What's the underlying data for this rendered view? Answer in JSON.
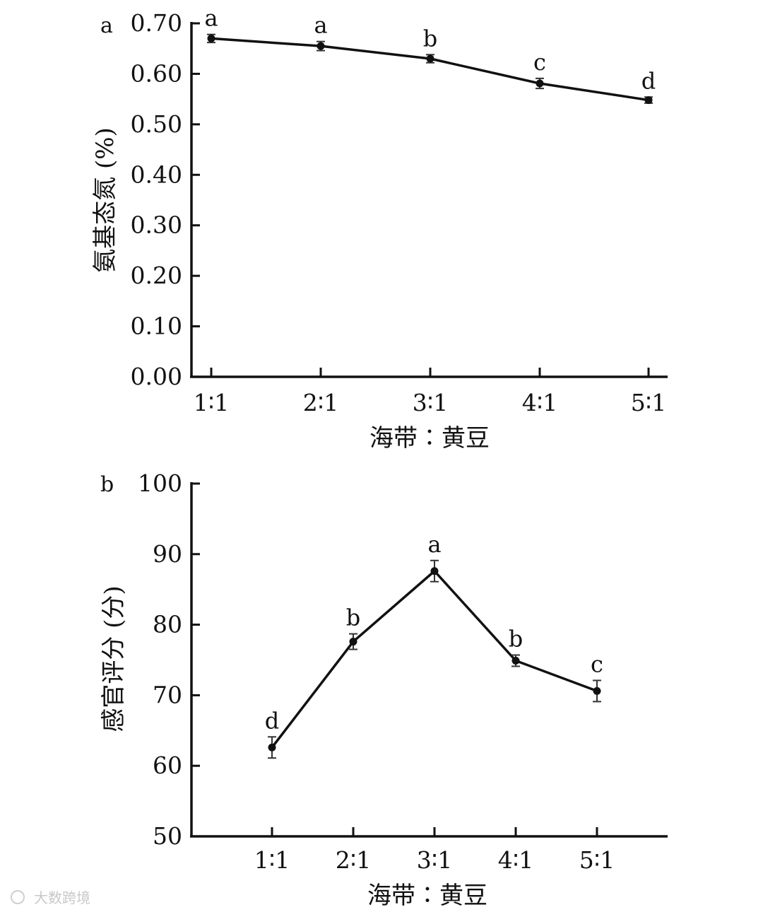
{
  "chart_data": [
    {
      "type": "line",
      "panel_label": "a",
      "categories": [
        "1∶1",
        "2∶1",
        "3∶1",
        "4∶1",
        "5∶1"
      ],
      "values": [
        0.67,
        0.655,
        0.63,
        0.581,
        0.548
      ],
      "errors": [
        0.008,
        0.009,
        0.008,
        0.01,
        0.006
      ],
      "significance_labels": [
        "a",
        "a",
        "b",
        "c",
        "d"
      ],
      "xlabel": "海带∶黄豆",
      "ylabel": "氨基态氮 (%)",
      "ylim": [
        0,
        0.7
      ],
      "yticks": [
        "0.00",
        "0.10",
        "0.20",
        "0.30",
        "0.40",
        "0.50",
        "0.60",
        "0.70"
      ],
      "grid": false,
      "line_color": "#111111"
    },
    {
      "type": "line",
      "panel_label": "b",
      "categories": [
        "1∶1",
        "2∶1",
        "3∶1",
        "4∶1",
        "5∶1"
      ],
      "values": [
        62.6,
        77.6,
        87.6,
        74.9,
        70.6
      ],
      "errors": [
        1.5,
        1.1,
        1.5,
        0.8,
        1.5
      ],
      "significance_labels": [
        "d",
        "b",
        "a",
        "b",
        "c"
      ],
      "xlabel": "海带∶黄豆",
      "ylabel": "感官评分 (分)",
      "ylim": [
        50,
        100
      ],
      "yticks": [
        "50",
        "60",
        "70",
        "80",
        "90",
        "100"
      ],
      "grid": false,
      "line_color": "#111111"
    }
  ],
  "watermark": "大数跨境"
}
